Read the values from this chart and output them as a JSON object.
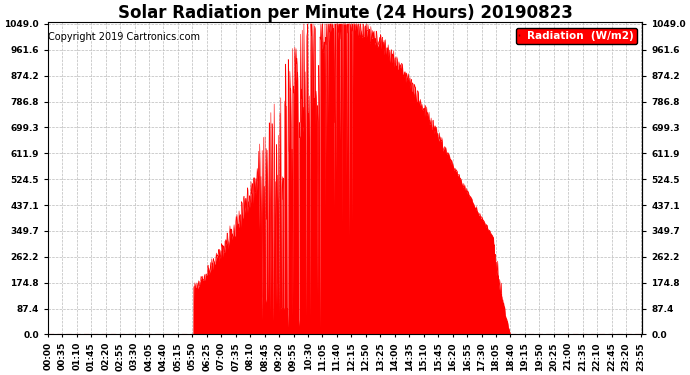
{
  "title": "Solar Radiation per Minute (24 Hours) 20190823",
  "copyright": "Copyright 2019 Cartronics.com",
  "legend_label": "Radiation  (W/m2)",
  "ylabel_ticks": [
    0.0,
    87.4,
    174.8,
    262.2,
    349.7,
    437.1,
    524.5,
    611.9,
    699.3,
    786.8,
    874.2,
    961.6,
    1049.0
  ],
  "ymax": 1049.0,
  "ymin": 0.0,
  "fill_color": "#ff0000",
  "line_color": "#cc0000",
  "background_color": "#ffffff",
  "grid_color": "#bbbbbb",
  "title_fontsize": 12,
  "copyright_fontsize": 7,
  "tick_fontsize": 6.5,
  "tick_interval_minutes": 35
}
